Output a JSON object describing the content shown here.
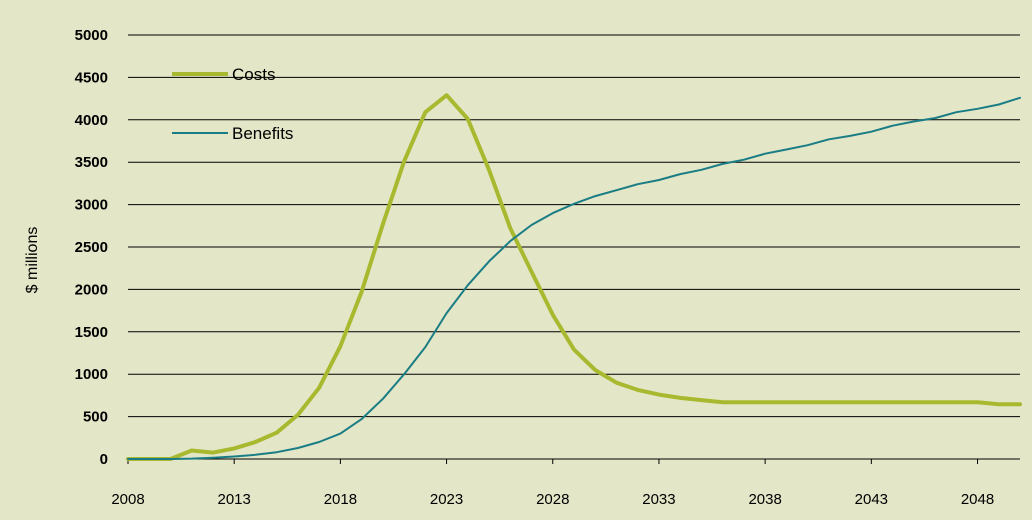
{
  "chart_data": {
    "type": "line",
    "title": "",
    "xlabel": "",
    "ylabel": "$ millions",
    "xlim": [
      2008,
      2050
    ],
    "ylim": [
      0,
      5000
    ],
    "yticks": [
      "0",
      "500",
      "1000",
      "1500",
      "2000",
      "2500",
      "3000",
      "3500",
      "4000",
      "4500",
      "5000"
    ],
    "xticks": [
      "2008",
      "2013",
      "2018",
      "2023",
      "2028",
      "2033",
      "2038",
      "2043",
      "2048"
    ],
    "grid": "horizontal",
    "legend": "top-left",
    "x": [
      2008,
      2009,
      2010,
      2011,
      2012,
      2013,
      2014,
      2015,
      2016,
      2017,
      2018,
      2019,
      2020,
      2021,
      2022,
      2023,
      2024,
      2025,
      2026,
      2027,
      2028,
      2029,
      2030,
      2031,
      2032,
      2033,
      2034,
      2035,
      2036,
      2037,
      2038,
      2039,
      2040,
      2041,
      2042,
      2043,
      2044,
      2045,
      2046,
      2047,
      2048,
      2049,
      2050
    ],
    "series": [
      {
        "name": "Costs",
        "color": "#a9b92f",
        "values": [
          0,
          0,
          0,
          100,
          75,
          125,
          200,
          310,
          520,
          840,
          1330,
          1970,
          2770,
          3510,
          4090,
          4290,
          4010,
          3410,
          2720,
          2210,
          1700,
          1290,
          1050,
          900,
          815,
          760,
          720,
          695,
          670,
          670,
          670,
          670,
          670,
          670,
          670,
          670,
          670,
          670,
          670,
          670,
          670,
          645,
          645
        ]
      },
      {
        "name": "Benefits",
        "color": "#1a7d85",
        "values": [
          0,
          0,
          0,
          5,
          15,
          30,
          50,
          80,
          130,
          200,
          300,
          470,
          710,
          1000,
          1320,
          1720,
          2050,
          2330,
          2570,
          2760,
          2900,
          3010,
          3100,
          3170,
          3240,
          3290,
          3360,
          3410,
          3480,
          3530,
          3600,
          3650,
          3700,
          3770,
          3810,
          3860,
          3930,
          3980,
          4020,
          4090,
          4130,
          4180,
          4260
        ]
      }
    ]
  }
}
